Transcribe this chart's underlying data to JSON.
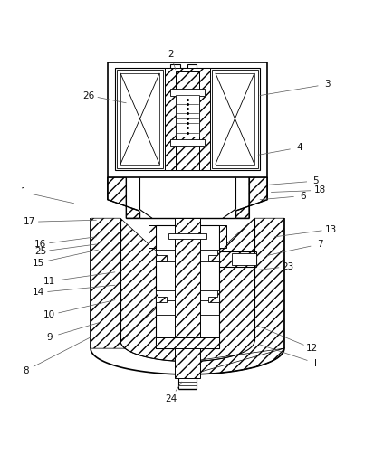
{
  "bg_color": "#ffffff",
  "line_color": "#000000",
  "labels_pos": {
    "1": [
      0.06,
      0.595,
      0.195,
      0.565
    ],
    "2": [
      0.455,
      0.965,
      0.468,
      0.925
    ],
    "3": [
      0.875,
      0.885,
      0.695,
      0.855
    ],
    "4": [
      0.8,
      0.715,
      0.69,
      0.695
    ],
    "5": [
      0.845,
      0.625,
      0.72,
      0.615
    ],
    "6": [
      0.81,
      0.585,
      0.695,
      0.575
    ],
    "7": [
      0.855,
      0.455,
      0.715,
      0.425
    ],
    "8": [
      0.065,
      0.115,
      0.24,
      0.205
    ],
    "9": [
      0.13,
      0.205,
      0.265,
      0.245
    ],
    "10": [
      0.13,
      0.265,
      0.305,
      0.305
    ],
    "11": [
      0.13,
      0.355,
      0.305,
      0.38
    ],
    "12": [
      0.835,
      0.175,
      0.69,
      0.235
    ],
    "13": [
      0.885,
      0.495,
      0.735,
      0.475
    ],
    "14": [
      0.1,
      0.325,
      0.305,
      0.345
    ],
    "15": [
      0.1,
      0.405,
      0.26,
      0.44
    ],
    "16": [
      0.105,
      0.455,
      0.255,
      0.475
    ],
    "17": [
      0.075,
      0.515,
      0.255,
      0.52
    ],
    "18": [
      0.855,
      0.6,
      0.725,
      0.595
    ],
    "23": [
      0.77,
      0.395,
      0.68,
      0.385
    ],
    "24": [
      0.455,
      0.04,
      0.485,
      0.085
    ],
    "25": [
      0.105,
      0.435,
      0.255,
      0.455
    ],
    "26": [
      0.235,
      0.855,
      0.335,
      0.835
    ],
    "I": [
      0.845,
      0.135,
      0.695,
      0.185
    ]
  }
}
